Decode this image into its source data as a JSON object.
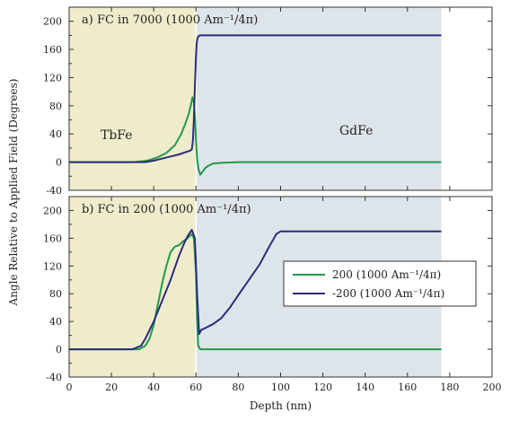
{
  "chart_data": [
    {
      "type": "line",
      "title": "a) FC in 7000 (1000 Am⁻¹/4π)",
      "xlabel": "Depth (nm)",
      "ylabel": "Angle Relative to Applied Field (Degrees)",
      "xlim": [
        0,
        200
      ],
      "ylim": [
        -40,
        220
      ],
      "xticks": [
        "0",
        "20",
        "40",
        "60",
        "80",
        "100",
        "120",
        "140",
        "160",
        "180",
        "200"
      ],
      "yticks": [
        "-40",
        "0",
        "40",
        "80",
        "120",
        "160",
        "200"
      ],
      "regions": [
        {
          "label": "TbFe",
          "x": [
            0,
            60
          ],
          "color": "#efeccc"
        },
        {
          "label": "GdFe",
          "x": [
            60,
            176
          ],
          "color": "#dde5ea"
        }
      ],
      "series": [
        {
          "color": "#1f9a4a",
          "x": [
            0,
            30,
            34,
            38,
            42,
            46,
            50,
            53,
            55,
            56.5,
            57.5,
            58.3,
            59,
            59.6,
            60,
            60.5,
            61.2,
            62,
            63,
            64.5,
            66,
            68,
            72,
            80,
            100,
            140,
            176
          ],
          "y": [
            0,
            0,
            1,
            3,
            7,
            13,
            24,
            40,
            55,
            68,
            80,
            92,
            85,
            60,
            30,
            5,
            -10,
            -18,
            -14,
            -8,
            -5,
            -2,
            -1,
            0,
            0,
            0,
            0
          ]
        },
        {
          "color": "#2e2a7c",
          "x": [
            0,
            30,
            36,
            40,
            44,
            48,
            52,
            55,
            57,
            58,
            58.5,
            59,
            59.5,
            60,
            60.3,
            60.7,
            61.2,
            62,
            65,
            80,
            120,
            176
          ],
          "y": [
            0,
            0,
            0,
            2,
            5,
            8,
            11,
            14,
            16,
            18,
            30,
            60,
            110,
            150,
            168,
            176,
            179,
            180,
            180,
            180,
            180,
            180
          ]
        }
      ]
    },
    {
      "type": "line",
      "title": "b) FC in 200 (1000 Am⁻¹/4π)",
      "xlabel": "Depth (nm)",
      "ylabel": "Angle Relative to Applied Field (Degrees)",
      "xlim": [
        0,
        200
      ],
      "ylim": [
        -40,
        220
      ],
      "xticks": [
        "0",
        "20",
        "40",
        "60",
        "80",
        "100",
        "120",
        "140",
        "160",
        "180",
        "200"
      ],
      "yticks": [
        "-40",
        "0",
        "40",
        "80",
        "120",
        "160",
        "200"
      ],
      "legend": {
        "position": "right",
        "entries": [
          {
            "label": "200 (1000 Am⁻¹/4π)",
            "color": "#1f9a4a"
          },
          {
            "label": "-200 (1000 Am⁻¹/4π)",
            "color": "#2e2a7c"
          }
        ]
      },
      "regions": [
        {
          "label": "",
          "x": [
            0,
            60
          ],
          "color": "#efeccc"
        },
        {
          "label": "",
          "x": [
            60,
            176
          ],
          "color": "#dde5ea"
        }
      ],
      "series": [
        {
          "color": "#1f9a4a",
          "x": [
            0,
            33,
            36,
            38,
            40,
            42,
            44,
            46,
            48,
            50,
            52,
            54,
            56,
            58,
            59,
            60,
            60.5,
            61,
            62,
            100,
            140,
            176
          ],
          "y": [
            0,
            0,
            5,
            15,
            35,
            65,
            95,
            120,
            140,
            148,
            150,
            156,
            160,
            166,
            160,
            110,
            40,
            5,
            0,
            0,
            0,
            0
          ]
        },
        {
          "color": "#2e2a7c",
          "x": [
            0,
            30,
            34,
            36,
            40,
            44,
            48,
            50,
            52,
            54,
            56,
            58,
            59.5,
            60.5,
            61.5,
            62.5,
            64,
            68,
            72,
            76,
            80,
            85,
            90,
            95,
            98,
            100,
            120,
            150,
            176
          ],
          "y": [
            0,
            0,
            5,
            15,
            40,
            70,
            100,
            118,
            135,
            150,
            163,
            172,
            160,
            80,
            22,
            28,
            30,
            36,
            45,
            60,
            78,
            100,
            122,
            150,
            166,
            170,
            170,
            170,
            170
          ]
        }
      ]
    }
  ],
  "region_labels": {
    "tbfe": "TbFe",
    "gdfe": "GdFe"
  }
}
